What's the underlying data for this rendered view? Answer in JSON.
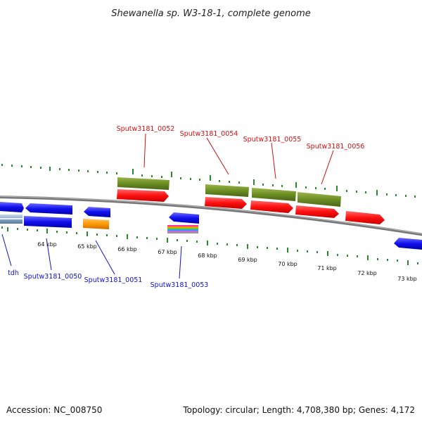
{
  "title": "Shewanella sp. W3-18-1, complete genome",
  "footer": {
    "accession": "Accession: NC_008750",
    "summary": "Topology: circular; Length: 4,708,380 bp; Genes: 4,172"
  },
  "ticks": [
    "64 kbp",
    "65 kbp",
    "66 kbp",
    "67 kbp",
    "68 kbp",
    "69 kbp",
    "70 kbp",
    "71 kbp",
    "72 kbp",
    "73 kbp"
  ],
  "labels": {
    "sputw3181_0052": "Sputw3181_0052",
    "sputw3181_0054": "Sputw3181_0054",
    "sputw3181_0055": "Sputw3181_0055",
    "sputw3181_0056": "Sputw3181_0056",
    "tdh": "tdh",
    "sputw3181_0050": "Sputw3181_0050",
    "sputw3181_0051": "Sputw3181_0051",
    "sputw3181_0053": "Sputw3181_0053"
  },
  "colors": {
    "forward_label": "#cc1111",
    "reverse_label": "#1111cc",
    "cds_red": "#ff1010",
    "gene_green": "#6b8e23",
    "cds_blue": "#1010ee",
    "orange": "#ff9900",
    "tick_green": "#2a8a2a",
    "backbone": "#888888"
  }
}
